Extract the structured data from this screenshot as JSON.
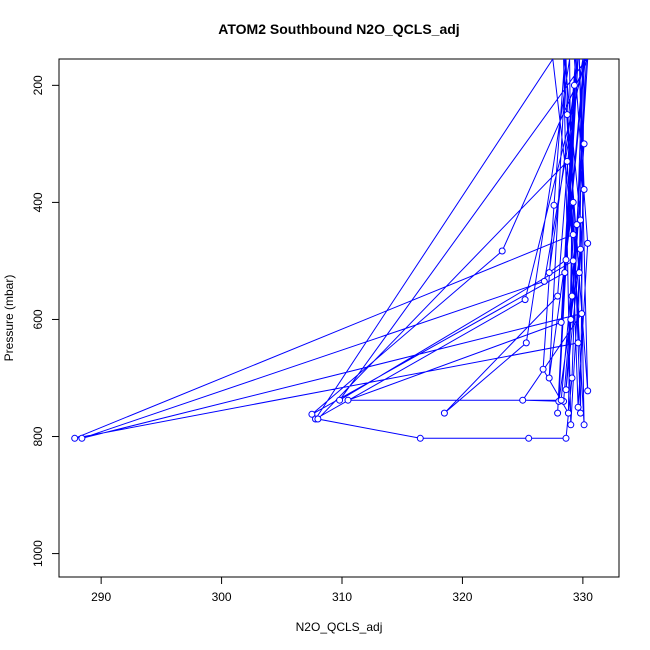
{
  "chart_data": {
    "type": "line",
    "title": "ATOM2 Southbound N2O_QCLS_adj",
    "xlabel": "N2O_QCLS_adj",
    "ylabel": "Pressure (mbar)",
    "xlim": [
      286.5,
      333.0
    ],
    "ylim": [
      1040,
      155
    ],
    "y_reversed": true,
    "grid": false,
    "line_color": "#0000ff",
    "marker": "open-circle",
    "x_ticks": [
      290,
      300,
      310,
      320,
      330
    ],
    "y_ticks": [
      200,
      400,
      600,
      800,
      1000
    ],
    "series": [
      {
        "points": [
          [
            329.5,
            155
          ],
          [
            328.0,
            740
          ],
          [
            329.8,
            480
          ],
          [
            328.6,
            720
          ],
          [
            330.1,
            300
          ],
          [
            329.0,
            600
          ],
          [
            330.4,
            155
          ],
          [
            323.3,
            483
          ],
          [
            307.5,
            762
          ],
          [
            328.5,
            520
          ],
          [
            330.2,
            155
          ],
          [
            325.2,
            566
          ],
          [
            307.8,
            770
          ],
          [
            327.5,
            155
          ],
          [
            329.2,
            455
          ],
          [
            287.8,
            803
          ],
          [
            329.6,
            640
          ],
          [
            330.0,
            155
          ],
          [
            326.8,
            535
          ],
          [
            288.4,
            803
          ],
          [
            329.9,
            590
          ],
          [
            325.0,
            738
          ],
          [
            328.4,
            740
          ],
          [
            329.1,
            560
          ],
          [
            328.9,
            155
          ],
          [
            325.3,
            640
          ],
          [
            318.5,
            760
          ],
          [
            327.9,
            560
          ],
          [
            329.4,
            155
          ],
          [
            328.2,
            605
          ],
          [
            310.5,
            738
          ],
          [
            328.2,
            738
          ],
          [
            329.5,
            438
          ],
          [
            330.3,
            155
          ],
          [
            309.8,
            738
          ],
          [
            329.2,
            500
          ],
          [
            328.7,
            330
          ],
          [
            308.0,
            770
          ],
          [
            316.5,
            803
          ],
          [
            325.5,
            803
          ],
          [
            328.6,
            803
          ],
          [
            329.1,
            700
          ],
          [
            330.0,
            155
          ],
          [
            329.7,
            520
          ],
          [
            328.7,
            250
          ],
          [
            330.4,
            722
          ],
          [
            329.7,
            155
          ],
          [
            330.1,
            378
          ],
          [
            329.0,
            780
          ],
          [
            328.4,
            155
          ],
          [
            330.1,
            780
          ],
          [
            329.8,
            430
          ],
          [
            328.5,
            155
          ],
          [
            327.6,
            405
          ],
          [
            326.7,
            685
          ],
          [
            328.8,
            760
          ],
          [
            329.3,
            200
          ],
          [
            327.9,
            760
          ],
          [
            329.6,
            155
          ],
          [
            327.2,
            520
          ],
          [
            328.6,
            498
          ],
          [
            330.1,
            155
          ],
          [
            329.8,
            760
          ],
          [
            329.2,
            400
          ],
          [
            327.2,
            700
          ],
          [
            328.6,
            155
          ],
          [
            329.6,
            750
          ],
          [
            330.4,
            470
          ],
          [
            329.3,
            155
          ]
        ]
      }
    ]
  }
}
